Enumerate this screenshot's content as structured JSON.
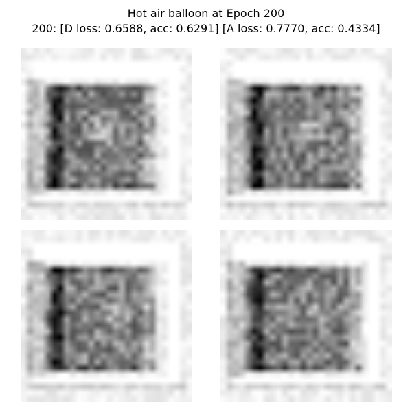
{
  "figure": {
    "title_line_1": "Hot air balloon at Epoch 200",
    "title_line_2": "200: [D loss: 0.6588, acc: 0.6291]  [A loss: 0.7770, acc: 0.4334]"
  },
  "samples": [
    {
      "name": "generated-sample-1"
    },
    {
      "name": "generated-sample-2"
    },
    {
      "name": "generated-sample-3"
    },
    {
      "name": "generated-sample-4"
    }
  ]
}
